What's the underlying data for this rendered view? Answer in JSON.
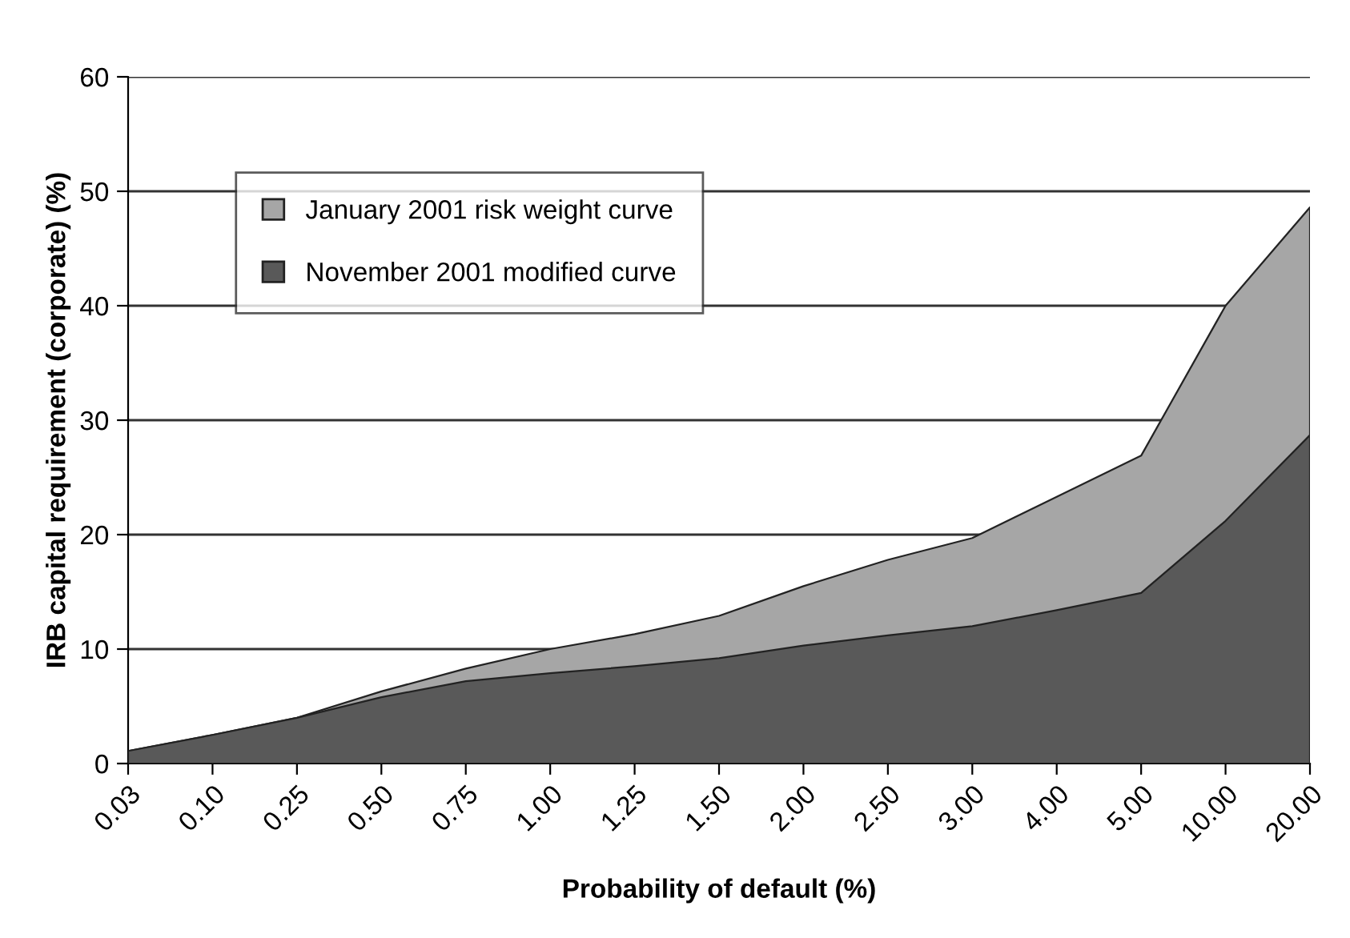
{
  "chart_data": {
    "type": "area",
    "xlabel": "Probability of default (%)",
    "ylabel": "IRB capital requirement (corporate) (%)",
    "categories": [
      "0.03",
      "0.10",
      "0.25",
      "0.50",
      "0.75",
      "1.00",
      "1.25",
      "1.50",
      "2.00",
      "2.50",
      "3.00",
      "4.00",
      "5.00",
      "10.00",
      "20.00"
    ],
    "series": [
      {
        "name": "January 2001 risk weight curve",
        "color": "#a6a6a6",
        "values": [
          1.1,
          2.5,
          4.0,
          6.3,
          8.3,
          10.0,
          11.3,
          12.9,
          15.5,
          17.8,
          19.7,
          23.3,
          26.9,
          40.0,
          48.6
        ]
      },
      {
        "name": "November 2001 modified curve",
        "color": "#595959",
        "values": [
          1.1,
          2.5,
          4.0,
          5.8,
          7.2,
          7.9,
          8.5,
          9.2,
          10.3,
          11.2,
          12.0,
          13.4,
          14.9,
          21.2,
          28.7
        ]
      }
    ],
    "ylim": [
      0,
      60
    ],
    "yticks": [
      0,
      10,
      20,
      30,
      40,
      50,
      60
    ],
    "grid": "y",
    "legend": "top left"
  }
}
